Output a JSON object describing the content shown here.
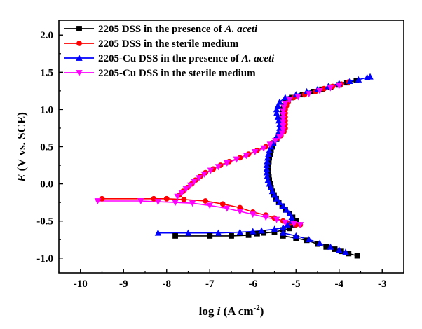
{
  "chart_data": {
    "type": "line",
    "xlabel": "log i (A cm⁻²)",
    "xlabel_parts": {
      "prefix": "log ",
      "var": "i",
      "units": " (A cm",
      "sup": "-2",
      "close": ")"
    },
    "ylabel": "E (V vs. SCE)",
    "ylabel_parts": {
      "var": "E",
      "rest": " (V vs. SCE)"
    },
    "xlim": [
      -10.5,
      -2.5
    ],
    "ylim": [
      -1.2,
      2.2
    ],
    "xticks": [
      -10,
      -9,
      -8,
      -7,
      -6,
      -5,
      -4,
      -3
    ],
    "xtick_labels": [
      "-10",
      "-9",
      "-8",
      "-7",
      "-6",
      "-5",
      "-4",
      "-3"
    ],
    "yticks": [
      -1.0,
      -0.5,
      0.0,
      0.5,
      1.0,
      1.5,
      2.0
    ],
    "ytick_labels": [
      "-1.0",
      "-0.5",
      "0.0",
      "0.5",
      "1.0",
      "1.5",
      "2.0"
    ],
    "grid": false,
    "legend_position": "top-left",
    "series": [
      {
        "name": "2205 DSS in the presence of A. aceti",
        "name_parts": {
          "pre": "2205 DSS in the presence of ",
          "ital": "A. aceti"
        },
        "color": "#000000",
        "marker": "square",
        "points": [
          [
            -7.8,
            -0.7
          ],
          [
            -7.0,
            -0.7
          ],
          [
            -6.5,
            -0.7
          ],
          [
            -6.1,
            -0.69
          ],
          [
            -5.9,
            -0.67
          ],
          [
            -5.75,
            -0.66
          ],
          [
            -5.5,
            -0.65
          ],
          [
            -5.3,
            -0.62
          ],
          [
            -5.15,
            -0.6
          ],
          [
            -5.05,
            -0.55
          ],
          [
            -5.0,
            -0.5
          ],
          [
            -5.08,
            -0.45
          ],
          [
            -5.15,
            -0.4
          ],
          [
            -5.25,
            -0.35
          ],
          [
            -5.32,
            -0.3
          ],
          [
            -5.4,
            -0.25
          ],
          [
            -5.46,
            -0.2
          ],
          [
            -5.51,
            -0.15
          ],
          [
            -5.54,
            -0.1
          ],
          [
            -5.58,
            -0.05
          ],
          [
            -5.6,
            0.0
          ],
          [
            -5.62,
            0.05
          ],
          [
            -5.63,
            0.1
          ],
          [
            -5.64,
            0.15
          ],
          [
            -5.64,
            0.2
          ],
          [
            -5.64,
            0.25
          ],
          [
            -5.63,
            0.3
          ],
          [
            -5.62,
            0.35
          ],
          [
            -5.6,
            0.4
          ],
          [
            -5.58,
            0.45
          ],
          [
            -5.55,
            0.5
          ],
          [
            -5.52,
            0.55
          ],
          [
            -5.45,
            0.6
          ],
          [
            -5.4,
            0.65
          ],
          [
            -5.35,
            0.7
          ],
          [
            -5.32,
            0.75
          ],
          [
            -5.3,
            0.8
          ],
          [
            -5.3,
            0.85
          ],
          [
            -5.3,
            0.9
          ],
          [
            -5.3,
            0.95
          ],
          [
            -5.3,
            1.0
          ],
          [
            -5.28,
            1.05
          ],
          [
            -5.25,
            1.1
          ],
          [
            -5.1,
            1.16
          ],
          [
            -4.85,
            1.2
          ],
          [
            -4.6,
            1.24
          ],
          [
            -4.4,
            1.27
          ],
          [
            -4.2,
            1.3
          ],
          [
            -4.0,
            1.33
          ],
          [
            -3.82,
            1.36
          ],
          [
            -3.6,
            1.39
          ]
        ],
        "points_cathodic": [
          [
            -5.3,
            -0.7
          ],
          [
            -5.0,
            -0.73
          ],
          [
            -4.75,
            -0.76
          ],
          [
            -4.5,
            -0.81
          ],
          [
            -4.3,
            -0.85
          ],
          [
            -4.1,
            -0.88
          ],
          [
            -3.95,
            -0.91
          ],
          [
            -3.78,
            -0.94
          ],
          [
            -3.58,
            -0.97
          ]
        ]
      },
      {
        "name": "2205 DSS in the sterile medium",
        "color": "#ff0000",
        "marker": "circle",
        "points": [
          [
            -9.5,
            -0.2
          ],
          [
            -8.3,
            -0.2
          ],
          [
            -8.0,
            -0.2
          ],
          [
            -7.6,
            -0.21
          ],
          [
            -7.1,
            -0.23
          ],
          [
            -6.7,
            -0.27
          ],
          [
            -6.3,
            -0.32
          ],
          [
            -6.0,
            -0.38
          ],
          [
            -5.7,
            -0.42
          ],
          [
            -5.5,
            -0.46
          ],
          [
            -5.3,
            -0.5
          ],
          [
            -5.15,
            -0.53
          ],
          [
            -5.0,
            -0.55
          ],
          [
            -4.9,
            -0.55
          ]
        ],
        "points_anodic": [
          [
            -7.7,
            -0.15
          ],
          [
            -7.62,
            -0.1
          ],
          [
            -7.52,
            -0.05
          ],
          [
            -7.42,
            0.0
          ],
          [
            -7.33,
            0.05
          ],
          [
            -7.22,
            0.1
          ],
          [
            -7.1,
            0.15
          ],
          [
            -6.92,
            0.2
          ],
          [
            -6.75,
            0.25
          ],
          [
            -6.55,
            0.3
          ],
          [
            -6.3,
            0.35
          ],
          [
            -6.1,
            0.4
          ],
          [
            -5.9,
            0.45
          ],
          [
            -5.7,
            0.5
          ],
          [
            -5.55,
            0.55
          ],
          [
            -5.45,
            0.6
          ],
          [
            -5.35,
            0.65
          ],
          [
            -5.28,
            0.7
          ],
          [
            -5.25,
            0.75
          ],
          [
            -5.25,
            0.8
          ],
          [
            -5.25,
            0.85
          ],
          [
            -5.25,
            0.9
          ],
          [
            -5.25,
            0.95
          ],
          [
            -5.25,
            1.0
          ],
          [
            -5.22,
            1.05
          ],
          [
            -5.18,
            1.1
          ],
          [
            -5.05,
            1.16
          ],
          [
            -4.8,
            1.2
          ],
          [
            -4.55,
            1.24
          ],
          [
            -4.35,
            1.28
          ],
          [
            -4.15,
            1.31
          ],
          [
            -3.95,
            1.34
          ],
          [
            -3.78,
            1.37
          ]
        ]
      },
      {
        "name": "2205-Cu DSS in the presence of A. aceti",
        "name_parts": {
          "pre": "2205-Cu DSS in the presence of ",
          "ital": "A. aceti"
        },
        "color": "#0000ff",
        "marker": "triangle-up",
        "points": [
          [
            -8.2,
            -0.66
          ],
          [
            -7.5,
            -0.66
          ],
          [
            -6.8,
            -0.66
          ],
          [
            -6.3,
            -0.65
          ],
          [
            -6.0,
            -0.64
          ],
          [
            -5.8,
            -0.63
          ],
          [
            -5.5,
            -0.61
          ],
          [
            -5.3,
            -0.59
          ],
          [
            -5.2,
            -0.55
          ],
          [
            -5.1,
            -0.5
          ],
          [
            -5.1,
            -0.45
          ],
          [
            -5.15,
            -0.4
          ],
          [
            -5.22,
            -0.35
          ],
          [
            -5.3,
            -0.3
          ],
          [
            -5.38,
            -0.25
          ],
          [
            -5.45,
            -0.2
          ],
          [
            -5.5,
            -0.15
          ],
          [
            -5.55,
            -0.1
          ],
          [
            -5.58,
            -0.05
          ],
          [
            -5.62,
            0.0
          ],
          [
            -5.65,
            0.05
          ],
          [
            -5.67,
            0.1
          ],
          [
            -5.68,
            0.15
          ],
          [
            -5.68,
            0.2
          ],
          [
            -5.68,
            0.25
          ],
          [
            -5.67,
            0.3
          ],
          [
            -5.66,
            0.35
          ],
          [
            -5.64,
            0.4
          ],
          [
            -5.62,
            0.45
          ],
          [
            -5.58,
            0.5
          ],
          [
            -5.53,
            0.55
          ],
          [
            -5.48,
            0.6
          ],
          [
            -5.43,
            0.65
          ],
          [
            -5.4,
            0.7
          ],
          [
            -5.38,
            0.75
          ],
          [
            -5.38,
            0.8
          ],
          [
            -5.4,
            0.85
          ],
          [
            -5.42,
            0.9
          ],
          [
            -5.45,
            0.95
          ],
          [
            -5.45,
            1.0
          ],
          [
            -5.42,
            1.05
          ],
          [
            -5.38,
            1.1
          ],
          [
            -5.25,
            1.16
          ],
          [
            -5.0,
            1.2
          ],
          [
            -4.75,
            1.24
          ],
          [
            -4.5,
            1.27
          ],
          [
            -4.25,
            1.31
          ],
          [
            -4.0,
            1.35
          ],
          [
            -3.75,
            1.38
          ],
          [
            -3.55,
            1.4
          ],
          [
            -3.35,
            1.43
          ],
          [
            -3.28,
            1.44
          ]
        ],
        "points_cathodic": [
          [
            -5.3,
            -0.66
          ],
          [
            -5.0,
            -0.7
          ],
          [
            -4.7,
            -0.75
          ],
          [
            -4.45,
            -0.8
          ],
          [
            -4.2,
            -0.85
          ],
          [
            -4.0,
            -0.89
          ],
          [
            -3.85,
            -0.92
          ]
        ]
      },
      {
        "name": "2205-Cu DSS in the sterile medium",
        "color": "#ff00ff",
        "marker": "triangle-down",
        "points": [
          [
            -9.6,
            -0.23
          ],
          [
            -8.6,
            -0.23
          ],
          [
            -8.2,
            -0.24
          ],
          [
            -7.8,
            -0.25
          ],
          [
            -7.4,
            -0.26
          ],
          [
            -7.0,
            -0.29
          ],
          [
            -6.6,
            -0.33
          ],
          [
            -6.3,
            -0.37
          ],
          [
            -6.0,
            -0.41
          ],
          [
            -5.7,
            -0.45
          ],
          [
            -5.45,
            -0.48
          ],
          [
            -5.25,
            -0.52
          ],
          [
            -5.05,
            -0.54
          ],
          [
            -4.9,
            -0.55
          ]
        ],
        "points_anodic": [
          [
            -7.75,
            -0.17
          ],
          [
            -7.65,
            -0.12
          ],
          [
            -7.55,
            -0.07
          ],
          [
            -7.45,
            -0.02
          ],
          [
            -7.36,
            0.03
          ],
          [
            -7.25,
            0.08
          ],
          [
            -7.13,
            0.13
          ],
          [
            -6.98,
            0.18
          ],
          [
            -6.8,
            0.23
          ],
          [
            -6.6,
            0.28
          ],
          [
            -6.38,
            0.33
          ],
          [
            -6.15,
            0.38
          ],
          [
            -5.95,
            0.43
          ],
          [
            -5.75,
            0.48
          ],
          [
            -5.6,
            0.53
          ],
          [
            -5.48,
            0.58
          ],
          [
            -5.38,
            0.63
          ],
          [
            -5.32,
            0.68
          ],
          [
            -5.3,
            0.73
          ],
          [
            -5.3,
            0.78
          ],
          [
            -5.3,
            0.83
          ],
          [
            -5.3,
            0.88
          ],
          [
            -5.3,
            0.93
          ],
          [
            -5.3,
            0.98
          ],
          [
            -5.28,
            1.03
          ],
          [
            -5.25,
            1.08
          ],
          [
            -5.15,
            1.13
          ],
          [
            -4.95,
            1.17
          ],
          [
            -4.7,
            1.21
          ],
          [
            -4.45,
            1.25
          ],
          [
            -4.2,
            1.29
          ],
          [
            -4.0,
            1.32
          ]
        ]
      }
    ]
  }
}
